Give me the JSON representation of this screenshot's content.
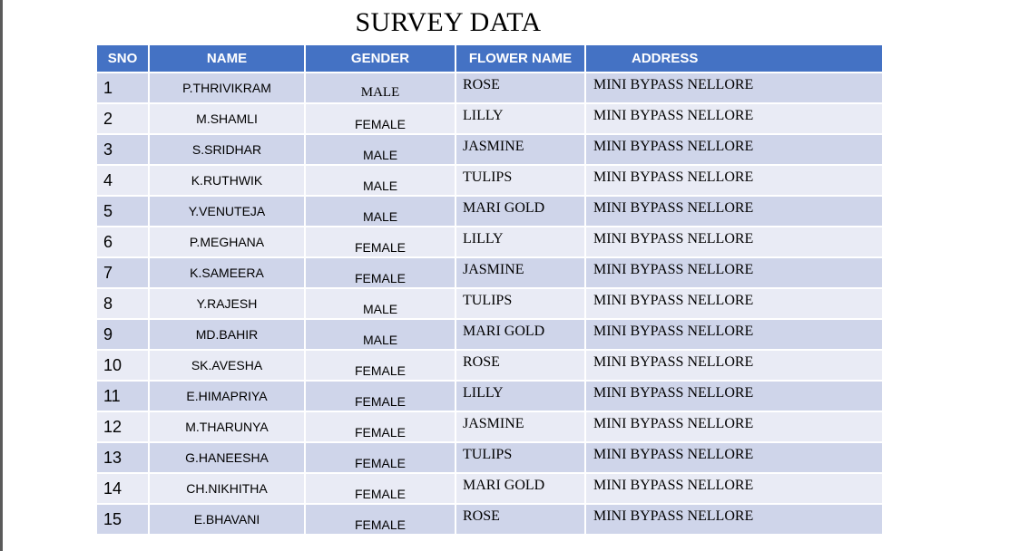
{
  "title": "SURVEY DATA",
  "columns": {
    "sno": "SNO",
    "name": "NAME",
    "gender": "GENDER",
    "flower": "FLOWER NAME",
    "address": "ADDRESS"
  },
  "rows": [
    {
      "sno": "1",
      "name": "P.THRIVIKRAM",
      "gender": "MALE",
      "flower": "ROSE",
      "address": "MINI BYPASS NELLORE"
    },
    {
      "sno": "2",
      "name": "M.SHAMLI",
      "gender": "FEMALE",
      "flower": "LILLY",
      "address": "MINI BYPASS NELLORE"
    },
    {
      "sno": "3",
      "name": "S.SRIDHAR",
      "gender": "MALE",
      "flower": "JASMINE",
      "address": "MINI BYPASS NELLORE"
    },
    {
      "sno": "4",
      "name": "K.RUTHWIK",
      "gender": "MALE",
      "flower": "TULIPS",
      "address": "MINI BYPASS NELLORE"
    },
    {
      "sno": "5",
      "name": "Y.VENUTEJA",
      "gender": "MALE",
      "flower": "MARI GOLD",
      "address": "MINI BYPASS NELLORE"
    },
    {
      "sno": "6",
      "name": "P.MEGHANA",
      "gender": "FEMALE",
      "flower": "LILLY",
      "address": "MINI BYPASS NELLORE"
    },
    {
      "sno": "7",
      "name": "K.SAMEERA",
      "gender": "FEMALE",
      "flower": "JASMINE",
      "address": "MINI BYPASS NELLORE"
    },
    {
      "sno": "8",
      "name": "Y.RAJESH",
      "gender": "MALE",
      "flower": "TULIPS",
      "address": "MINI BYPASS NELLORE"
    },
    {
      "sno": "9",
      "name": "MD.BAHIR",
      "gender": "MALE",
      "flower": "MARI GOLD",
      "address": "MINI BYPASS NELLORE"
    },
    {
      "sno": "10",
      "name": "SK.AVESHA",
      "gender": "FEMALE",
      "flower": "ROSE",
      "address": "MINI BYPASS NELLORE"
    },
    {
      "sno": "11",
      "name": "E.HIMAPRIYA",
      "gender": "FEMALE",
      "flower": "LILLY",
      "address": "MINI BYPASS NELLORE"
    },
    {
      "sno": "12",
      "name": "M.THARUNYA",
      "gender": "FEMALE",
      "flower": "JASMINE",
      "address": "MINI BYPASS NELLORE"
    },
    {
      "sno": "13",
      "name": "G.HANEESHA",
      "gender": "FEMALE",
      "flower": "TULIPS",
      "address": "MINI BYPASS NELLORE"
    },
    {
      "sno": "14",
      "name": "CH.NIKHITHA",
      "gender": "FEMALE",
      "flower": "MARI GOLD",
      "address": "MINI BYPASS NELLORE"
    },
    {
      "sno": "15",
      "name": "E.BHAVANI",
      "gender": "FEMALE",
      "flower": "ROSE",
      "address": "MINI BYPASS NELLORE"
    }
  ],
  "colors": {
    "header": "#4472c4",
    "row_odd": "#cfd5ea",
    "row_even": "#e9ebf5"
  }
}
